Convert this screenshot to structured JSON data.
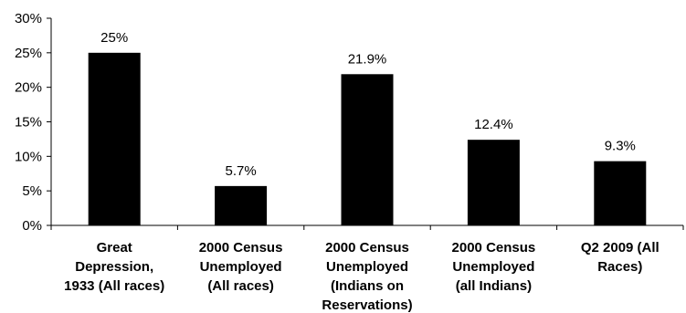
{
  "chart_data": {
    "type": "bar",
    "categories": [
      [
        "Great",
        "Depression,",
        "1933 (All races)"
      ],
      [
        "2000 Census",
        "Unemployed",
        "(All races)"
      ],
      [
        "2000 Census",
        "Unemployed",
        "(Indians on",
        "Reservations)"
      ],
      [
        "2000 Census",
        "Unemployed",
        "(all Indians)"
      ],
      [
        "Q2 2009 (All",
        "Races)"
      ]
    ],
    "values": [
      25,
      5.7,
      21.9,
      12.4,
      9.3
    ],
    "data_labels": [
      "25%",
      "5.7%",
      "21.9%",
      "12.4%",
      "9.3%"
    ],
    "y_ticks": [
      0,
      5,
      10,
      15,
      20,
      25,
      30
    ],
    "y_tick_labels": [
      "0%",
      "5%",
      "10%",
      "15%",
      "20%",
      "25%",
      "30%"
    ],
    "ylim": [
      0,
      30
    ],
    "grid": false,
    "legend": false,
    "bar_color": "#000000"
  }
}
